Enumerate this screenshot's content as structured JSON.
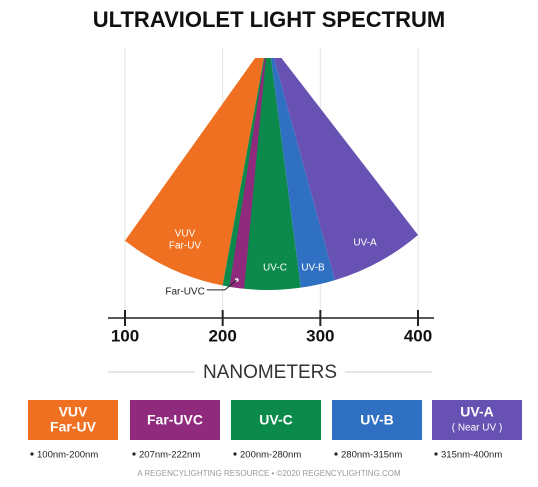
{
  "chart_data": {
    "type": "spectrum",
    "title": "ULTRAVIOLET LIGHT SPECTRUM",
    "x_label": "NANOMETERS",
    "xlim": [
      100,
      400
    ],
    "xticks": [
      100,
      200,
      300,
      400
    ],
    "grid": true,
    "bands": [
      {
        "name": [
          "VUV",
          "Far-UV"
        ],
        "start": 100,
        "end": 200,
        "color": "#f07022",
        "range_label": "100nm-200nm"
      },
      {
        "name": [
          "Far-UVC"
        ],
        "start": 207,
        "end": 222,
        "color": "#8f2a7c",
        "range_label": "207nm-222nm"
      },
      {
        "name": [
          "UV-C"
        ],
        "start": 200,
        "end": 280,
        "color": "#0b8a4b",
        "range_label": "200nm-280nm"
      },
      {
        "name": [
          "UV-B"
        ],
        "start": 280,
        "end": 315,
        "color": "#2f70c2",
        "range_label": "280nm-315nm"
      },
      {
        "name": [
          "UV-A",
          "( Near UV )"
        ],
        "start": 315,
        "end": 400,
        "color": "#6751b2",
        "range_label": "315nm-400nm"
      }
    ],
    "footer": "A REGENCYLIGHTING RESOURCE • ©2020 REGENCYLIGHTING.COM"
  }
}
